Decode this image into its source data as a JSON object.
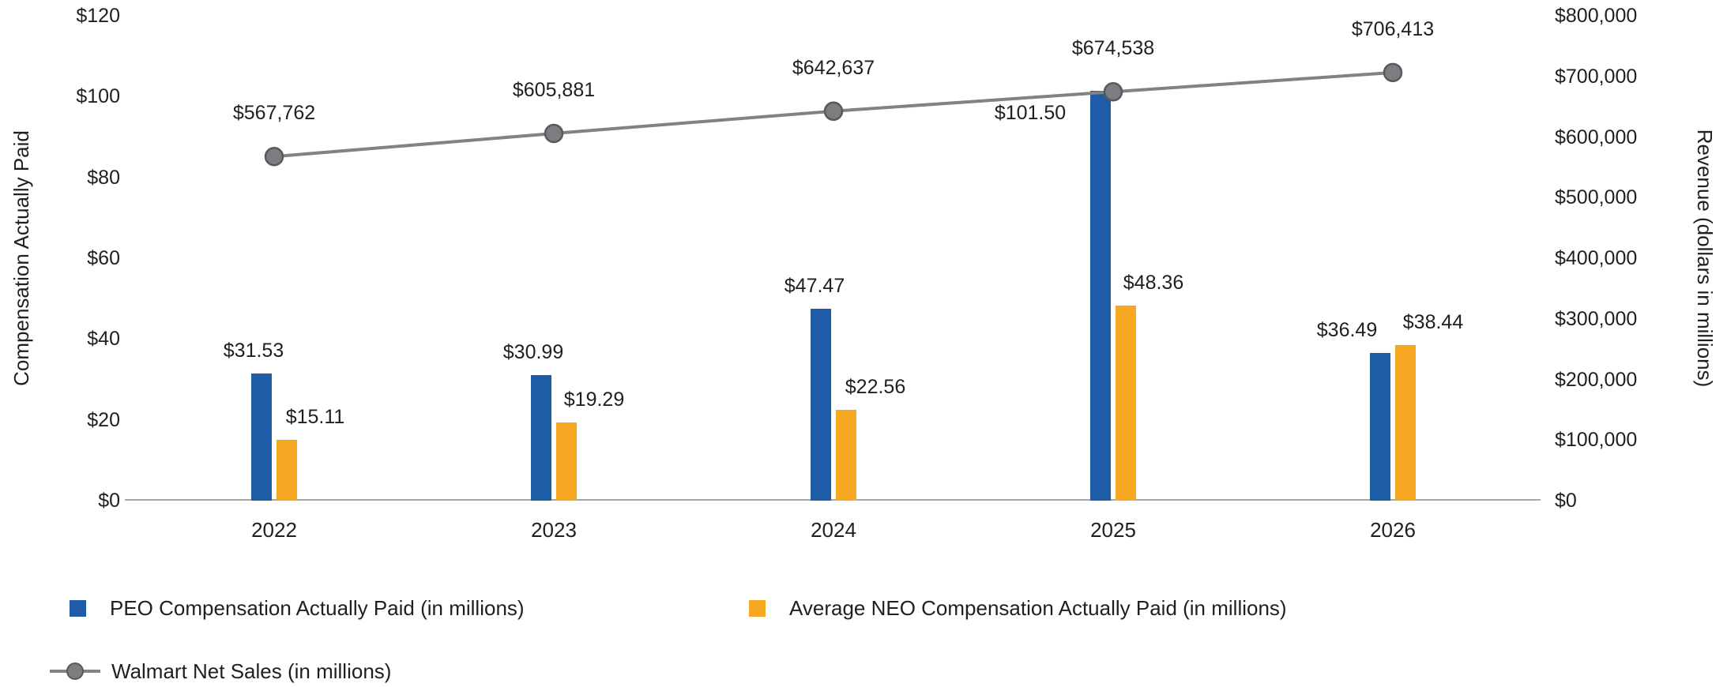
{
  "chart_data": {
    "type": "combo",
    "categories": [
      "2022",
      "2023",
      "2024",
      "2025",
      "2026"
    ],
    "left_axis": {
      "title": "Compensation Actually Paid",
      "min": 0,
      "max": 120,
      "step": 20,
      "tick_labels": [
        "$0",
        "$20",
        "$40",
        "$60",
        "$80",
        "$100",
        "$120"
      ]
    },
    "right_axis": {
      "title": "Revenue (dollars in millions)",
      "min": 0,
      "max": 800000,
      "step": 100000,
      "tick_labels": [
        "$0",
        "$100,000",
        "$200,000",
        "$300,000",
        "$400,000",
        "$500,000",
        "$600,000",
        "$700,000",
        "$800,000"
      ]
    },
    "bar_series": [
      {
        "key": "peo",
        "name": "PEO Compensation Actually Paid (in millions)",
        "color": "#1f5ca8",
        "values": [
          31.53,
          30.99,
          47.47,
          101.5,
          36.49
        ],
        "labels": [
          "$31.53",
          "$30.99",
          "$47.47",
          "$101.50",
          "$36.49"
        ],
        "label_dx": [
          -10,
          -10,
          -8,
          -89,
          -42
        ],
        "label_dy": [
          0,
          0,
          0,
          57,
          0
        ]
      },
      {
        "key": "neo",
        "name": "Average NEO Compensation Actually Paid (in millions)",
        "color": "#f6a823",
        "values": [
          15.11,
          19.29,
          22.56,
          48.36,
          38.44
        ],
        "labels": [
          "$15.11",
          "$19.29",
          "$22.56",
          "$48.36",
          "$38.44"
        ],
        "label_dx": [
          36,
          35,
          37,
          35,
          35
        ],
        "label_dy": [
          0,
          0,
          0,
          0,
          0
        ]
      }
    ],
    "line_series": [
      {
        "key": "netsales",
        "name": "Walmart Net Sales (in millions)",
        "color": "#808285",
        "marker_fill": "#7c7d80",
        "marker_stroke": "#58595b",
        "values": [
          567762,
          605881,
          642637,
          674538,
          706413
        ],
        "labels": [
          "$567,762",
          "$605,881",
          "$642,637",
          "$674,538",
          "$706,413"
        ]
      }
    ],
    "legend": {
      "items": [
        {
          "label": "PEO Compensation Actually Paid (in millions)",
          "marker": "square",
          "color": "#1f5ca8"
        },
        {
          "label": "Average NEO Compensation Actually Paid (in millions)",
          "marker": "square",
          "color": "#f6a823"
        },
        {
          "label": "Walmart Net Sales (in millions)",
          "marker": "line-dot",
          "color": "#808285"
        }
      ]
    },
    "grid": false,
    "legend_position": "bottom-left",
    "axis_line_color": "#a6a6a6"
  }
}
